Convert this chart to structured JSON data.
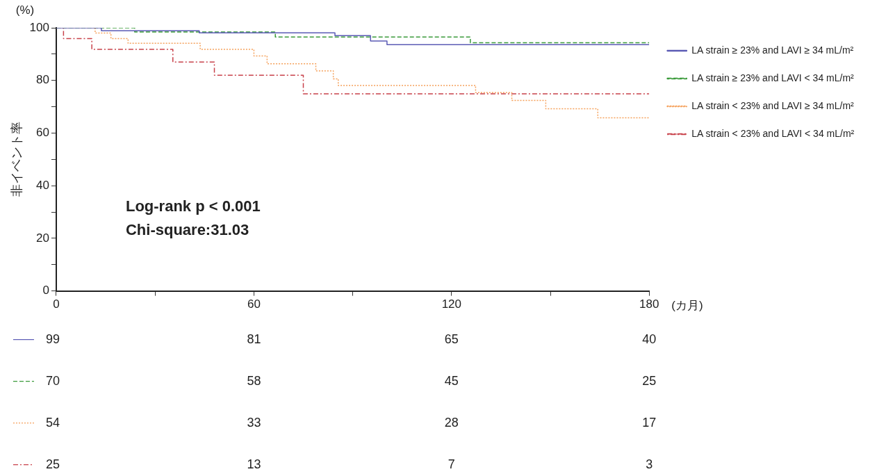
{
  "chart_data": {
    "type": "step",
    "xlabel": "(カ月)",
    "ylabel": "非イベント率",
    "xlim": [
      0,
      180
    ],
    "xticks": [
      0,
      {
        "value": 30,
        "label": null
      },
      60,
      {
        "value": 90,
        "label": null
      },
      120,
      {
        "value": 150,
        "label": null
      },
      180
    ],
    "ylim": [
      0,
      100
    ],
    "yticks": [
      0,
      {
        "value": 10,
        "label": null
      },
      20,
      {
        "value": 30,
        "label": null
      },
      40,
      {
        "value": 50,
        "label": null
      },
      60,
      {
        "value": 70,
        "label": null
      },
      80,
      {
        "value": 90,
        "label": null
      },
      100
    ],
    "grid": false,
    "legend": "top right",
    "marker": "none",
    "series": [
      {
        "name": "LA strain ≥ 23% and LAVI ≥ 34 mL/m²",
        "color": "#5b5bb5",
        "line_style": "solid",
        "x": [
          0,
          13.7,
          43.4,
          84.6,
          95.4,
          100.4,
          180
        ],
        "values": [
          100,
          98.9,
          98.1,
          97.0,
          95.0,
          93.6,
          93.6
        ]
      },
      {
        "name": "LA strain ≥ 23% and LAVI < 34 mL/m²",
        "color": "#3a9a3a",
        "line_style": "dashed",
        "x": [
          0,
          23.8,
          66.5,
          125.7,
          180
        ],
        "values": [
          100,
          98.4,
          96.5,
          94.3,
          94.3
        ]
      },
      {
        "name": "LA strain < 23% and LAVI ≥ 34 mL/m²",
        "color": "#f5a05a",
        "line_style": "dotted",
        "x": [
          0,
          11.8,
          16.6,
          21.8,
          43.7,
          60.0,
          64.0,
          78.8,
          84.1,
          85.6,
          127.3,
          138.3,
          148.6,
          164.4,
          180
        ],
        "values": [
          100,
          98.0,
          95.9,
          94.1,
          91.8,
          89.3,
          86.3,
          83.6,
          80.6,
          78.1,
          75.4,
          72.4,
          69.2,
          65.8,
          65.8
        ]
      },
      {
        "name": "LA strain < 23% and LAVI < 34 mL/m²",
        "color": "#c8414a",
        "line_style": "dashdot",
        "x": [
          0,
          2.2,
          10.8,
          35.4,
          48.0,
          75.0,
          180
        ],
        "values": [
          100,
          95.9,
          91.8,
          87.0,
          82.0,
          74.9,
          74.9
        ]
      }
    ],
    "annotations": [
      "(%)",
      "Log-rank p < 0.001",
      "Chi-square:31.03",
      "99",
      "81",
      "65",
      "40",
      "70",
      "58",
      "45",
      "25",
      "54",
      "33",
      "28",
      "17",
      "25",
      "13",
      "7",
      "3"
    ]
  }
}
